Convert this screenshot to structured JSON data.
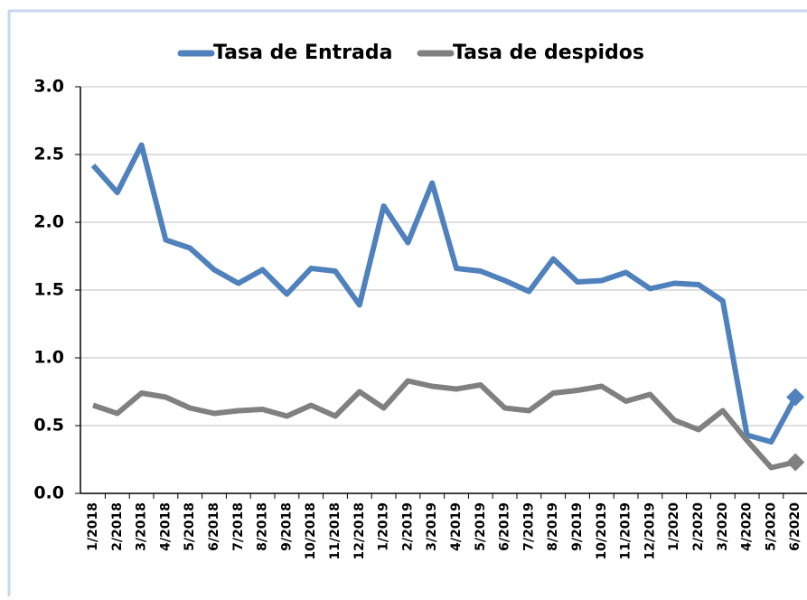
{
  "chart_data": {
    "type": "line",
    "categories": [
      "1/2018",
      "2/2018",
      "3/2018",
      "4/2018",
      "5/2018",
      "6/2018",
      "7/2018",
      "8/2018",
      "9/2018",
      "10/2018",
      "11/2018",
      "12/2018",
      "1/2019",
      "2/2019",
      "3/2019",
      "4/2019",
      "5/2019",
      "6/2019",
      "7/2019",
      "8/2019",
      "9/2019",
      "10/2019",
      "11/2019",
      "12/2019",
      "1/2020",
      "2/2020",
      "3/2020",
      "4/2020",
      "5/2020",
      "6/2020"
    ],
    "series": [
      {
        "name": "Tasa de Entrada",
        "color": "#4f81bd",
        "values": [
          2.42,
          2.22,
          2.57,
          1.87,
          1.81,
          1.65,
          1.55,
          1.65,
          1.47,
          1.66,
          1.64,
          1.39,
          2.12,
          1.85,
          2.29,
          1.66,
          1.64,
          1.57,
          1.49,
          1.73,
          1.56,
          1.57,
          1.63,
          1.51,
          1.55,
          1.54,
          1.42,
          0.43,
          0.38,
          0.71
        ]
      },
      {
        "name": "Tasa de despidos",
        "color": "#808080",
        "values": [
          0.65,
          0.59,
          0.74,
          0.71,
          0.63,
          0.59,
          0.61,
          0.62,
          0.57,
          0.65,
          0.57,
          0.75,
          0.63,
          0.83,
          0.79,
          0.77,
          0.8,
          0.63,
          0.61,
          0.74,
          0.76,
          0.79,
          0.68,
          0.73,
          0.54,
          0.47,
          0.61,
          0.39,
          0.19,
          0.23
        ]
      }
    ],
    "ylim": [
      0,
      3
    ],
    "yticks": [
      {
        "value": 0,
        "label": "0.0"
      },
      0.5,
      {
        "value": 1,
        "label": "1.0"
      },
      1.5,
      {
        "value": 2,
        "label": "2.0"
      },
      2.5,
      {
        "value": 3,
        "label": "3.0"
      }
    ],
    "grid": true
  }
}
